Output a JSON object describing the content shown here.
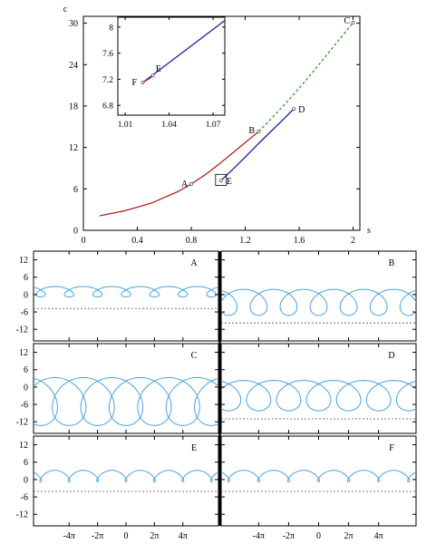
{
  "chart_data": [
    {
      "id": "main",
      "type": "line",
      "xlabel": "s",
      "ylabel": "c",
      "xlim": [
        0,
        2.05
      ],
      "ylim": [
        0,
        31
      ],
      "xticks": [
        0,
        0.4,
        0.8,
        1.2,
        1.6,
        2
      ],
      "yticks": [
        0,
        6,
        12,
        18,
        24,
        30
      ],
      "xtick_labels": [
        "0",
        "0.4",
        "0.8",
        "1.2",
        "1.6",
        "2"
      ],
      "ytick_labels": [
        "0",
        "6",
        "12",
        "18",
        "24",
        "30"
      ],
      "series": [
        {
          "color": "#b22222",
          "dash": "solid",
          "x": [
            0.12,
            0.3,
            0.5,
            0.7,
            0.8,
            0.9,
            1.0,
            1.1,
            1.2,
            1.3
          ],
          "y": [
            2.1,
            2.8,
            3.9,
            5.6,
            6.7,
            8.0,
            9.5,
            11.1,
            12.7,
            14.3
          ]
        },
        {
          "color": "#1c1c9c",
          "dash": "solid",
          "x": [
            1.02,
            1.1,
            1.2,
            1.3,
            1.4,
            1.5,
            1.56
          ],
          "y": [
            7.2,
            8.7,
            10.6,
            12.6,
            14.5,
            16.4,
            17.6
          ]
        },
        {
          "color": "#2e9e2e",
          "dash": "dashed",
          "x": [
            1.3,
            1.4,
            1.5,
            1.6,
            1.7,
            1.8,
            1.9,
            2.0
          ],
          "y": [
            14.3,
            16.3,
            18.4,
            20.6,
            22.9,
            25.3,
            27.7,
            30.1
          ]
        }
      ],
      "points": [
        {
          "label": "A",
          "x": 0.8,
          "y": 6.7
        },
        {
          "label": "B",
          "x": 1.3,
          "y": 14.3
        },
        {
          "label": "C",
          "x": 2.0,
          "y": 30.1
        },
        {
          "label": "D",
          "x": 1.56,
          "y": 17.6
        },
        {
          "label": "E",
          "x": 1.02,
          "y": 7.2
        }
      ],
      "inset_box": {
        "x": [
          0.98,
          1.06
        ],
        "y": [
          6.5,
          8.1
        ]
      }
    },
    {
      "id": "inset",
      "type": "line",
      "xlim": [
        1.005,
        1.078
      ],
      "ylim": [
        6.65,
        8.15
      ],
      "xticks": [
        1.01,
        1.04,
        1.07
      ],
      "yticks": [
        6.8,
        7.2,
        7.6,
        8
      ],
      "xtick_labels": [
        "1.01",
        "1.04",
        "1.07"
      ],
      "ytick_labels": [
        "6.8",
        "7.2",
        "7.6",
        "8"
      ],
      "series": [
        {
          "color": "#1c1c9c",
          "dash": "solid",
          "x": [
            1.022,
            1.078
          ],
          "y": [
            7.15,
            8.1
          ]
        },
        {
          "color": "#b22222",
          "dash": "solid",
          "x": [
            1.022,
            1.028
          ],
          "y": [
            7.15,
            7.23
          ]
        }
      ],
      "points": [
        {
          "label": "F",
          "x": 1.022,
          "y": 7.15
        },
        {
          "label": "E",
          "x": 1.029,
          "y": 7.26
        }
      ]
    },
    {
      "id": "profiles",
      "type": "line",
      "xtick_labels": [
        "-4π",
        "-2π",
        "0",
        "2π",
        "4π"
      ],
      "xticks_over_pi": [
        -4,
        -2,
        0,
        2,
        4
      ],
      "x_range_over_pi": [
        -6.5,
        6.5
      ],
      "ylim": [
        -16,
        15
      ],
      "yticks": [
        12,
        6,
        0,
        -6,
        -12
      ],
      "ytick_labels": [
        "12",
        "6",
        "0",
        "-6",
        "-12"
      ],
      "curve_color": "#4aa3df",
      "panels": [
        {
          "label": "A",
          "period_over_pi": 2,
          "bulge": 2.4,
          "top": 2.8,
          "neck": -1.6,
          "bottom_y": -0.8,
          "dashed_y": -4.8
        },
        {
          "label": "B",
          "period_over_pi": 2,
          "bulge": 3.2,
          "top": 1.8,
          "neck": -0.8,
          "bottom_y": -7.2,
          "dashed_y": -9.8
        },
        {
          "label": "C",
          "period_over_pi": 2,
          "bulge": 5.2,
          "top": 3.3,
          "neck": -2.0,
          "bottom_y": -13.3,
          "dashed_y": -16.5
        },
        {
          "label": "D",
          "period_over_pi": 2,
          "bulge": 4.0,
          "top": 2.3,
          "neck": -1.0,
          "bottom_y": -8.2,
          "dashed_y": -11.0
        },
        {
          "label": "E",
          "period_over_pi": 2,
          "bulge": 1.4,
          "top": 3.2,
          "neck": -2.1,
          "bottom_y": -0.8,
          "dashed_y": -4.1
        },
        {
          "label": "F",
          "period_over_pi": 2,
          "bulge": 1.4,
          "top": 3.2,
          "neck": -2.1,
          "bottom_y": -0.8,
          "dashed_y": -4.1
        }
      ]
    }
  ]
}
